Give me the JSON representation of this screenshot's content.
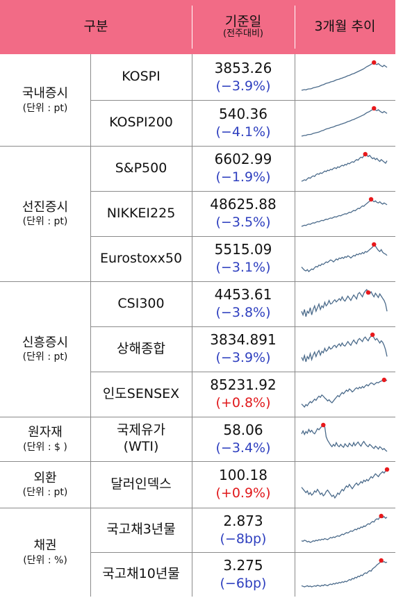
{
  "header": {
    "category": "구분",
    "date": "기준일",
    "date_sub": "(전주대비)",
    "trend": "3개월 추이"
  },
  "colors": {
    "header_bg": "#f26b86",
    "negative": "#2e3fbf",
    "positive": "#e0181b",
    "line": "#4a6a8a",
    "peak": "#e8191c"
  },
  "groups": [
    {
      "name": "국내증시",
      "unit": "(단위 : pt)",
      "rows": [
        {
          "name": "KOSPI",
          "value": "3853.26",
          "change": "(−3.9%)",
          "dir": "neg",
          "trend": [
            20,
            21,
            22,
            21,
            23,
            24,
            24,
            25,
            27,
            28,
            29,
            30,
            31,
            33,
            35,
            36,
            38,
            40,
            41,
            42,
            44,
            45,
            46,
            48,
            50,
            51,
            52,
            54,
            55,
            57,
            58,
            60,
            62,
            63,
            65,
            67,
            68,
            70,
            72,
            74,
            76,
            78,
            80,
            82,
            85,
            88,
            90,
            92,
            95,
            97,
            100,
            96,
            94,
            97,
            93,
            90,
            88,
            92,
            89,
            86
          ],
          "peak": 50
        },
        {
          "name": "KOSPI200",
          "value": "540.36",
          "change": "(−4.1%)",
          "dir": "neg",
          "trend": [
            18,
            19,
            20,
            20,
            22,
            23,
            23,
            24,
            26,
            27,
            28,
            29,
            30,
            32,
            34,
            35,
            37,
            39,
            40,
            41,
            43,
            44,
            45,
            47,
            49,
            50,
            51,
            53,
            54,
            56,
            57,
            59,
            61,
            62,
            64,
            66,
            67,
            69,
            71,
            73,
            75,
            77,
            79,
            81,
            84,
            87,
            89,
            91,
            94,
            96,
            100,
            95,
            93,
            96,
            92,
            89,
            87,
            91,
            88,
            85
          ],
          "peak": 50
        }
      ]
    },
    {
      "name": "선진증시",
      "unit": "(단위 : pt)",
      "rows": [
        {
          "name": "S&P500",
          "value": "6602.99",
          "change": "(−1.9%)",
          "dir": "neg",
          "trend": [
            10,
            12,
            15,
            13,
            18,
            22,
            20,
            25,
            28,
            26,
            32,
            35,
            33,
            38,
            36,
            40,
            44,
            42,
            47,
            45,
            50,
            48,
            53,
            55,
            52,
            58,
            56,
            60,
            63,
            61,
            66,
            64,
            70,
            68,
            72,
            75,
            73,
            78,
            82,
            80,
            86,
            90,
            88,
            95,
            100,
            97,
            92,
            96,
            90,
            85,
            88,
            82,
            86,
            80,
            76,
            82,
            78,
            74,
            70,
            78
          ],
          "peak": 44
        },
        {
          "name": "NIKKEI225",
          "value": "48625.88",
          "change": "(−3.5%)",
          "dir": "neg",
          "trend": [
            10,
            12,
            14,
            13,
            16,
            18,
            17,
            20,
            22,
            21,
            24,
            26,
            25,
            28,
            30,
            29,
            32,
            34,
            33,
            36,
            38,
            37,
            40,
            42,
            41,
            44,
            46,
            45,
            48,
            50,
            52,
            51,
            54,
            57,
            56,
            60,
            63,
            62,
            66,
            70,
            69,
            74,
            78,
            77,
            82,
            86,
            90,
            94,
            100,
            96,
            92,
            95,
            90,
            88,
            92,
            87,
            84,
            88,
            85,
            82
          ],
          "peak": 48
        },
        {
          "name": "Eurostoxx50",
          "value": "5515.09",
          "change": "(−3.1%)",
          "dir": "neg",
          "trend": [
            30,
            25,
            20,
            18,
            22,
            16,
            20,
            24,
            22,
            28,
            32,
            30,
            36,
            34,
            40,
            38,
            42,
            46,
            44,
            48,
            52,
            50,
            46,
            50,
            55,
            52,
            58,
            56,
            60,
            57,
            62,
            60,
            65,
            62,
            58,
            62,
            66,
            64,
            70,
            68,
            72,
            70,
            75,
            72,
            78,
            76,
            80,
            84,
            88,
            92,
            100,
            95,
            88,
            82,
            78,
            84,
            76,
            72,
            70,
            66
          ],
          "peak": 50
        }
      ]
    },
    {
      "name": "신흥증시",
      "unit": "(단위 : pt)",
      "rows": [
        {
          "name": "CSI300",
          "value": "4453.61",
          "change": "(−3.8%)",
          "dir": "neg",
          "trend": [
            40,
            30,
            45,
            25,
            40,
            35,
            50,
            30,
            45,
            55,
            40,
            50,
            60,
            45,
            55,
            50,
            65,
            55,
            60,
            70,
            60,
            62,
            68,
            72,
            66,
            70,
            75,
            70,
            80,
            72,
            68,
            75,
            82,
            76,
            70,
            78,
            85,
            80,
            74,
            88,
            92,
            86,
            80,
            90,
            96,
            100,
            92,
            88,
            94,
            86,
            80,
            90,
            84,
            78,
            88,
            82,
            76,
            70,
            60,
            40
          ],
          "peak": 46
        },
        {
          "name": "상해종합",
          "value": "3834.891",
          "change": "(−3.9%)",
          "dir": "neg",
          "trend": [
            40,
            32,
            45,
            28,
            42,
            36,
            50,
            34,
            46,
            54,
            42,
            52,
            58,
            46,
            56,
            52,
            64,
            56,
            60,
            68,
            62,
            64,
            70,
            72,
            66,
            72,
            76,
            70,
            78,
            72,
            70,
            76,
            82,
            76,
            72,
            80,
            86,
            80,
            76,
            86,
            90,
            86,
            82,
            90,
            94,
            88,
            84,
            92,
            96,
            100,
            92,
            86,
            90,
            84,
            78,
            84,
            80,
            72,
            60,
            42
          ],
          "peak": 49
        },
        {
          "name": "인도SENSEX",
          "value": "85231.92",
          "change": "(+0.8%)",
          "dir": "pos",
          "trend": [
            20,
            15,
            10,
            18,
            14,
            22,
            28,
            24,
            30,
            36,
            32,
            40,
            46,
            42,
            50,
            46,
            40,
            36,
            30,
            34,
            28,
            24,
            30,
            36,
            42,
            48,
            44,
            52,
            58,
            54,
            60,
            66,
            62,
            70,
            66,
            60,
            64,
            70,
            74,
            70,
            76,
            72,
            78,
            74,
            80,
            84,
            80,
            86,
            90,
            88,
            84,
            88,
            92,
            90,
            94,
            96,
            98,
            100,
            97,
            99
          ],
          "peak": 57
        }
      ]
    },
    {
      "name": "원자재",
      "unit": "(단위 : $ )",
      "rows": [
        {
          "name": "국제유가\n(WTI)",
          "value": "58.06",
          "change": "(−3.4%)",
          "dir": "neg",
          "trend": [
            70,
            80,
            68,
            78,
            72,
            85,
            76,
            82,
            74,
            70,
            78,
            88,
            84,
            90,
            96,
            100,
            94,
            60,
            48,
            40,
            32,
            26,
            34,
            28,
            40,
            30,
            26,
            34,
            28,
            24,
            36,
            30,
            26,
            38,
            32,
            28,
            40,
            30,
            36,
            42,
            34,
            28,
            38,
            44,
            36,
            30,
            26,
            34,
            30,
            24,
            20,
            28,
            24,
            18,
            26,
            22,
            16,
            20,
            14,
            10
          ],
          "peak": 15
        }
      ]
    },
    {
      "name": "외환",
      "unit": "(단위 : pt)",
      "rows": [
        {
          "name": "달러인덱스",
          "value": "100.18",
          "change": "(+0.9%)",
          "dir": "pos",
          "trend": [
            50,
            45,
            40,
            35,
            40,
            30,
            35,
            28,
            32,
            40,
            36,
            44,
            38,
            30,
            34,
            26,
            30,
            38,
            42,
            36,
            30,
            24,
            28,
            20,
            26,
            34,
            30,
            38,
            44,
            40,
            48,
            54,
            50,
            58,
            52,
            46,
            52,
            58,
            62,
            56,
            60,
            66,
            62,
            70,
            66,
            72,
            68,
            74,
            80,
            76,
            82,
            88,
            84,
            80,
            86,
            90,
            94,
            90,
            96,
            100
          ],
          "peak": 59
        }
      ]
    },
    {
      "name": "채권",
      "unit": "(단위 : %)",
      "rows": [
        {
          "name": "국고채3년물",
          "value": "2.873",
          "change": "(−8bp)",
          "dir": "neg",
          "trend": [
            10,
            8,
            12,
            10,
            6,
            8,
            4,
            6,
            10,
            8,
            12,
            10,
            14,
            12,
            16,
            14,
            18,
            16,
            14,
            18,
            22,
            20,
            24,
            22,
            26,
            28,
            26,
            30,
            34,
            32,
            36,
            40,
            38,
            42,
            46,
            44,
            48,
            52,
            50,
            56,
            54,
            60,
            58,
            64,
            62,
            68,
            72,
            70,
            76,
            80,
            78,
            86,
            90,
            88,
            96,
            100,
            94,
            98,
            92,
            96
          ],
          "peak": 55
        },
        {
          "name": "국고채10년물",
          "value": "3.275",
          "change": "(−6bp)",
          "dir": "neg",
          "trend": [
            10,
            8,
            6,
            8,
            10,
            7,
            9,
            6,
            8,
            10,
            8,
            12,
            10,
            8,
            12,
            10,
            14,
            12,
            10,
            14,
            16,
            14,
            18,
            16,
            20,
            18,
            22,
            20,
            24,
            22,
            26,
            24,
            28,
            32,
            30,
            36,
            34,
            40,
            38,
            44,
            42,
            48,
            46,
            52,
            56,
            54,
            60,
            64,
            62,
            70,
            74,
            78,
            84,
            88,
            92,
            100,
            94,
            96,
            92,
            94
          ],
          "peak": 55
        }
      ]
    }
  ]
}
